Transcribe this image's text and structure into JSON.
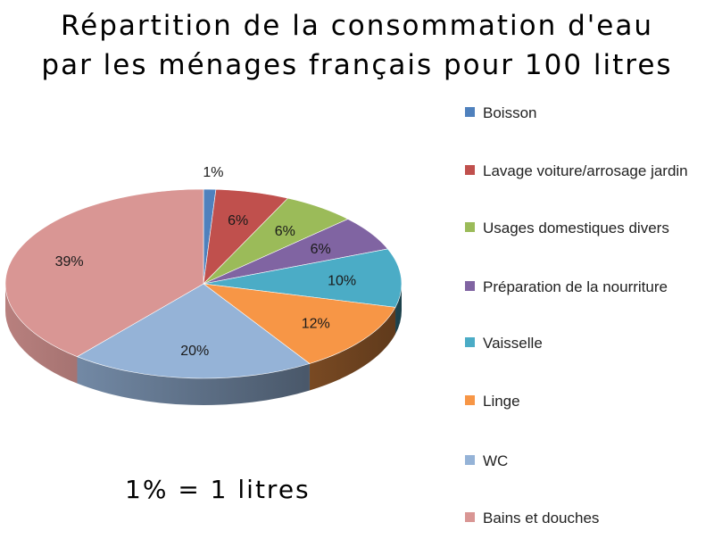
{
  "title": {
    "line1": "Répartition de la consommation d'eau",
    "line2": "par les ménages français pour 100 litres"
  },
  "note": "1% = 1 litres",
  "chart_data": {
    "type": "pie",
    "title": "Répartition de la consommation d'eau par les ménages français pour 100 litres",
    "legend_position": "right",
    "slices": [
      {
        "name": "Boisson",
        "value": 1,
        "label": "1%",
        "color": "#4F81BD"
      },
      {
        "name": "Lavage voiture/arrosage jardin",
        "value": 6,
        "label": "6%",
        "color": "#C0504D"
      },
      {
        "name": "Usages domestiques divers",
        "value": 6,
        "label": "6%",
        "color": "#9BBB59"
      },
      {
        "name": "Préparation de la nourriture",
        "value": 6,
        "label": "6%",
        "color": "#8064A2"
      },
      {
        "name": "Vaisselle",
        "value": 10,
        "label": "10%",
        "color": "#4BACC6"
      },
      {
        "name": "Linge",
        "value": 12,
        "label": "12%",
        "color": "#F79646"
      },
      {
        "name": "WC",
        "value": 20,
        "label": "20%",
        "color": "#95B3D7"
      },
      {
        "name": "Bains et douches",
        "value": 39,
        "label": "39%",
        "color": "#D99694"
      }
    ]
  }
}
